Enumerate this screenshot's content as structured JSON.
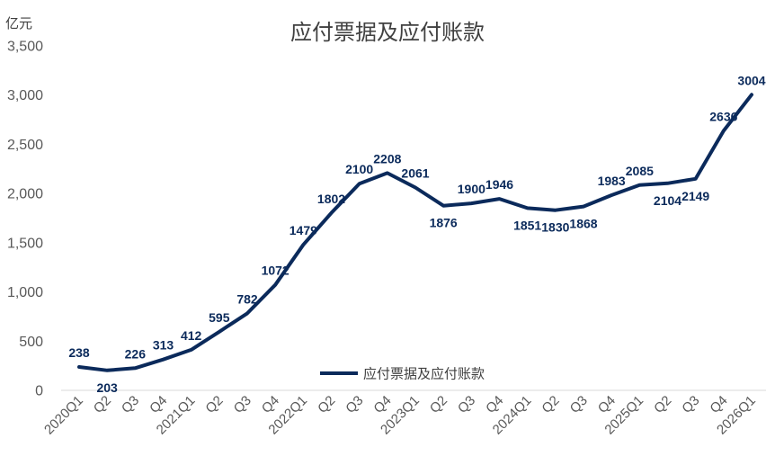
{
  "chart_data": {
    "type": "line",
    "title": "应付票据及应付账款",
    "unit_label": "亿元",
    "ylim": [
      0,
      3500
    ],
    "y_ticks": [
      0,
      500,
      1000,
      1500,
      2000,
      2500,
      3000,
      3500
    ],
    "y_tick_labels": [
      "0",
      "500",
      "1,000",
      "1,500",
      "2,000",
      "2,500",
      "3,000",
      "3,500"
    ],
    "grid": false,
    "legend_position": "bottom-center",
    "line_color": "#0B2A5B",
    "categories": [
      "2020Q1",
      "Q2",
      "Q3",
      "Q4",
      "2021Q1",
      "Q2",
      "Q3",
      "Q4",
      "2022Q1",
      "Q2",
      "Q3",
      "Q4",
      "2023Q1",
      "Q2",
      "Q3",
      "Q4",
      "2024Q1",
      "Q2",
      "Q3",
      "Q4",
      "2025Q1",
      "Q2",
      "Q3",
      "Q4",
      "2026Q1"
    ],
    "series": [
      {
        "name": "应付票据及应付账款",
        "values": [
          238,
          203,
          226,
          313,
          412,
          595,
          782,
          1072,
          1479,
          1802,
          2100,
          2208,
          2061,
          1876,
          1900,
          1946,
          1851,
          1830,
          1868,
          1983,
          2085,
          2104,
          2149,
          2636,
          3004
        ],
        "label_positions": [
          "above",
          "below",
          "above",
          "above",
          "above",
          "above",
          "above",
          "above",
          "above",
          "above",
          "above",
          "above",
          "above",
          "below",
          "above",
          "above",
          "below",
          "below",
          "below",
          "above",
          "above",
          "below",
          "below",
          "above",
          "above"
        ]
      }
    ]
  }
}
